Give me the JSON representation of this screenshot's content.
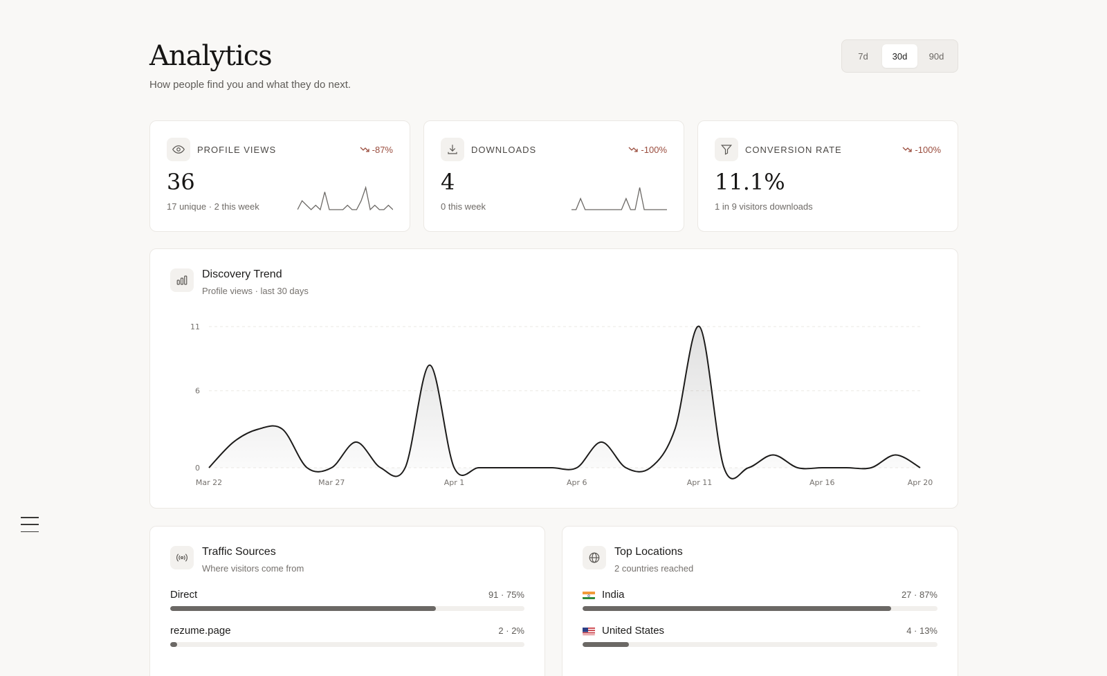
{
  "header": {
    "title": "Analytics",
    "subtitle": "How people find you and what they do next."
  },
  "range": {
    "options": [
      "7d",
      "30d",
      "90d"
    ],
    "selected": "30d"
  },
  "stats": [
    {
      "icon": "eye-icon",
      "label": "PROFILE VIEWS",
      "change": "-87%",
      "value": "36",
      "sub": "17 unique · 2 this week",
      "spark": [
        0,
        2,
        1,
        0,
        1,
        0,
        4,
        0,
        0,
        0,
        0,
        1,
        0,
        0,
        2,
        5,
        0,
        1,
        0,
        0,
        1,
        0
      ]
    },
    {
      "icon": "download-icon",
      "label": "DOWNLOADS",
      "change": "-100%",
      "value": "4",
      "sub": "0 this week",
      "spark": [
        0,
        0,
        2,
        0,
        0,
        0,
        0,
        0,
        0,
        0,
        0,
        0,
        2,
        0,
        0,
        4,
        0,
        0,
        0,
        0,
        0,
        0
      ]
    },
    {
      "icon": "funnel-icon",
      "label": "CONVERSION RATE",
      "change": "-100%",
      "value": "11.1%",
      "sub": "1 in 9 visitors downloads"
    }
  ],
  "trend": {
    "icon": "bar-chart-icon",
    "title": "Discovery Trend",
    "subtitle": "Profile views · last 30 days"
  },
  "chart_data": {
    "type": "area",
    "x": [
      "Mar 22",
      "Mar 23",
      "Mar 24",
      "Mar 25",
      "Mar 26",
      "Mar 27",
      "Mar 28",
      "Mar 29",
      "Mar 30",
      "Mar 31",
      "Apr 1",
      "Apr 2",
      "Apr 3",
      "Apr 4",
      "Apr 5",
      "Apr 6",
      "Apr 7",
      "Apr 8",
      "Apr 9",
      "Apr 10",
      "Apr 11",
      "Apr 12",
      "Apr 13",
      "Apr 14",
      "Apr 15",
      "Apr 16",
      "Apr 17",
      "Apr 18",
      "Apr 19",
      "Apr 20"
    ],
    "series": [
      {
        "values": [
          0,
          2,
          3,
          3,
          0,
          0,
          2,
          0,
          0,
          8,
          0,
          0,
          0,
          0,
          0,
          0,
          2,
          0,
          0,
          3,
          11,
          0,
          0,
          1,
          0,
          0,
          0,
          0,
          1,
          0
        ]
      }
    ],
    "xticks": [
      "Mar 22",
      "Mar 27",
      "Apr 1",
      "Apr 6",
      "Apr 11",
      "Apr 16",
      "Apr 20"
    ],
    "yticks": [
      "0",
      "6",
      "11"
    ],
    "ylim": [
      0,
      11
    ],
    "grid": true
  },
  "traffic": {
    "icon": "broadcast-icon",
    "title": "Traffic Sources",
    "subtitle": "Where visitors come from",
    "rows": [
      {
        "name": "Direct",
        "meta": "91 · 75%",
        "fill": 0.75
      },
      {
        "name": "rezume.page",
        "meta": "2 · 2%",
        "fill": 0.02
      }
    ]
  },
  "locations": {
    "icon": "globe-icon",
    "title": "Top Locations",
    "subtitle": "2 countries reached",
    "rows": [
      {
        "name": "India",
        "flag": "india-flag-icon",
        "meta": "27 · 87%",
        "fill": 0.87
      },
      {
        "name": "United States",
        "flag": "us-flag-icon",
        "meta": "4 · 13%",
        "fill": 0.13
      }
    ]
  },
  "colors": {
    "accent": "#1c1b1a",
    "negative": "#9a4d3e",
    "bar": "#6b6865"
  }
}
